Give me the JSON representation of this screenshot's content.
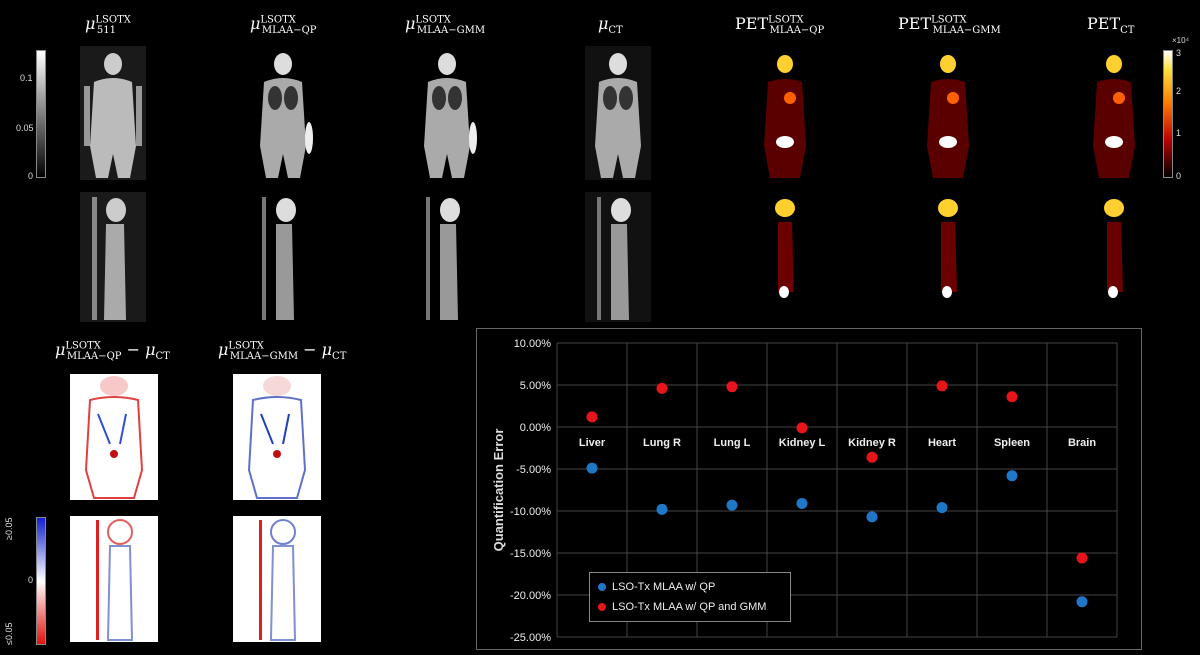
{
  "titles": {
    "t1": {
      "base": "μ",
      "sup": "LSOTX",
      "sub": "511"
    },
    "t2": {
      "base": "μ",
      "sup": "LSOTX",
      "sub": "MLAA−QP"
    },
    "t3": {
      "base": "μ",
      "sup": "LSOTX",
      "sub": "MLAA−GMM"
    },
    "t4": {
      "base": "μ",
      "sub": "CT"
    },
    "t5": {
      "base": "PET",
      "sup": "LSOTX",
      "sub": "MLAA−QP"
    },
    "t6": {
      "base": "PET",
      "sup": "LSOTX",
      "sub": "MLAA−GMM"
    },
    "t7": {
      "base": "PET",
      "sub": "CT"
    },
    "d1": {
      "base": "μ",
      "sup": "LSOTX",
      "sub": "MLAA−QP",
      "rest": " − μ",
      "rsub": "CT"
    },
    "d2": {
      "base": "μ",
      "sup": "LSOTX",
      "sub": "MLAA−GMM",
      "rest": " − μ",
      "rsub": "CT"
    }
  },
  "colorbars": {
    "mu": {
      "labels": [
        "0.1",
        "0.05",
        "0"
      ]
    },
    "pet": {
      "exp": "×10⁴",
      "labels": [
        "3",
        "2",
        "1",
        "0"
      ]
    },
    "diff": {
      "labels": [
        "≥0.05",
        "0",
        "≤0.05"
      ]
    }
  },
  "chart_data": {
    "type": "scatter",
    "categories": [
      "Liver",
      "Lung R",
      "Lung L",
      "Kidney L",
      "Kidney R",
      "Heart",
      "Spleen",
      "Brain"
    ],
    "ylabel": "Quantification Error",
    "ylim": [
      -25,
      10
    ],
    "yticks": [
      "10.00%",
      "5.00%",
      "0.00%",
      "-5.00%",
      "-10.00%",
      "-15.00%",
      "-20.00%",
      "-25.00%"
    ],
    "grid": true,
    "legend_position": "bottom-left",
    "series": [
      {
        "name": "LSO-Tx MLAA w/ QP",
        "color": "#1f77c8",
        "values": [
          -4.9,
          -9.8,
          -9.3,
          -9.1,
          -10.7,
          -9.6,
          -5.8,
          -20.8
        ]
      },
      {
        "name": "LSO-Tx MLAA w/ QP and GMM",
        "color": "#e8141c",
        "values": [
          1.2,
          4.6,
          4.8,
          -0.1,
          -3.6,
          4.9,
          3.6,
          -15.6
        ]
      }
    ]
  }
}
